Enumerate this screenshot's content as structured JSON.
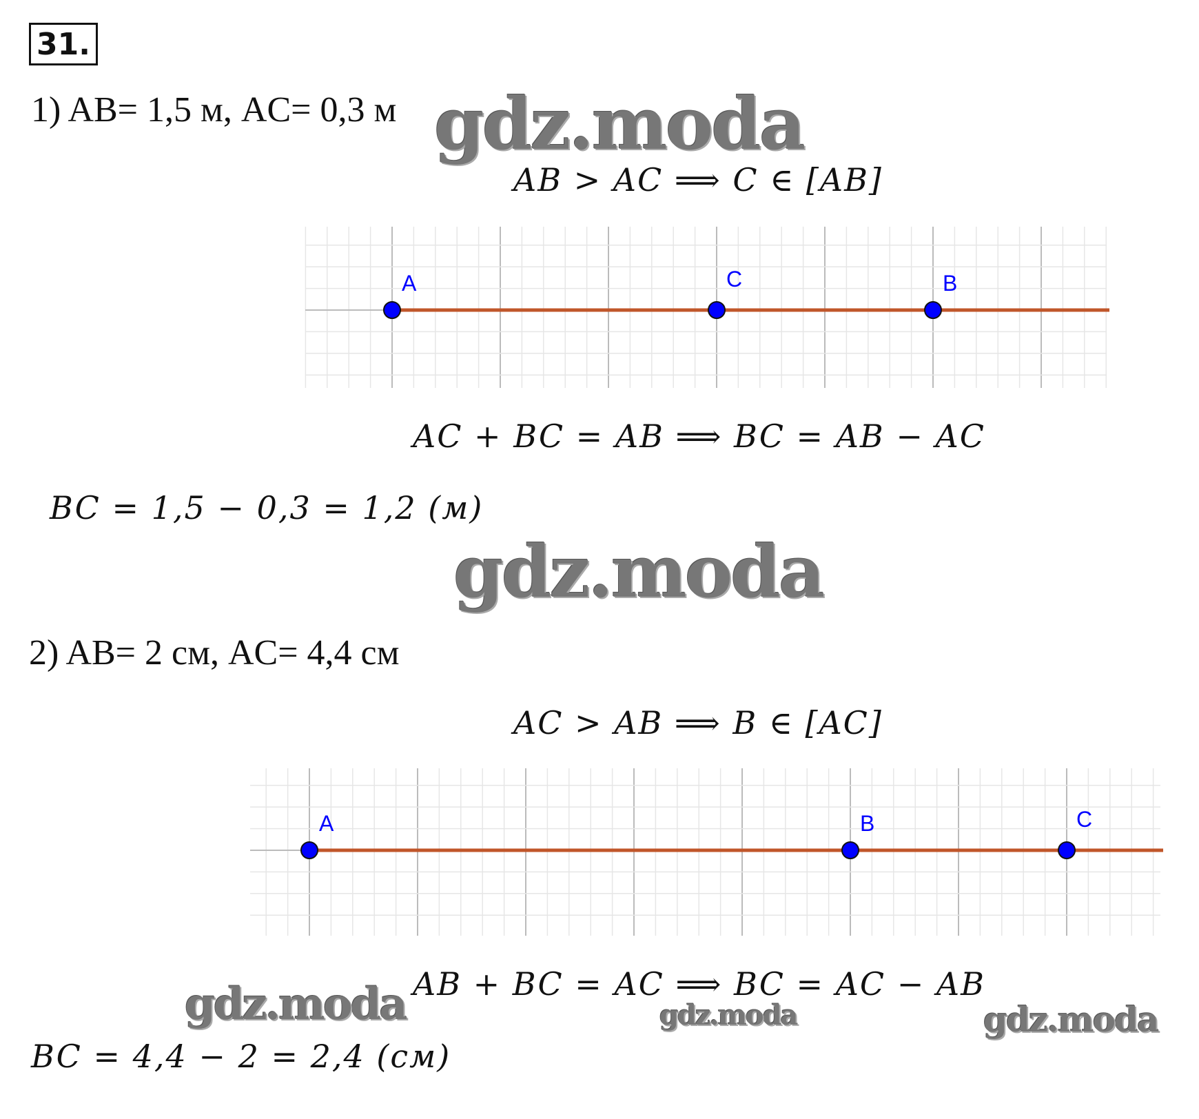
{
  "problem_number": "31.",
  "part1": {
    "given": "1) AB= 1,5 м, AC= 0,3 м",
    "relation": "AB > AC ⟹ C ∈ [AB]",
    "equation": "AC + BC = AB ⟹ BC = AB − AC",
    "result": "BC = 1,5 − 0,3 = 1,2 (м)",
    "points": [
      {
        "label": "A",
        "pos": 0
      },
      {
        "label": "C",
        "pos": 3
      },
      {
        "label": "B",
        "pos": 5
      }
    ]
  },
  "part2": {
    "given": "2) AB= 2 см, AC= 4,4 см",
    "relation": "AC > AB ⟹ B ∈ [AC]",
    "equation": "AB + BC = AC ⟹ BC = AC − AB",
    "result": "BC = 4,4 − 2 = 2,4 (см)",
    "points": [
      {
        "label": "A",
        "pos": 0
      },
      {
        "label": "B",
        "pos": 5
      },
      {
        "label": "C",
        "pos": 7
      }
    ]
  },
  "watermark": "gdz.moda",
  "colors": {
    "segment": "#c0562a",
    "point": "#0000ff",
    "label": "#0000ff",
    "grid_major": "#bbbbbb",
    "grid_minor": "#e6e6e6"
  }
}
